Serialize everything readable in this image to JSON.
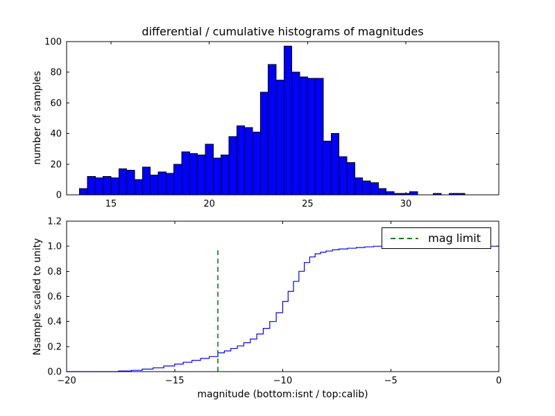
{
  "figure": {
    "background_color": "#ffffff",
    "axes_color": "#000000"
  },
  "chart_data": [
    {
      "type": "bar",
      "role": "differential-histogram",
      "title": "differential / cumulative histograms of magnitudes",
      "ylabel": "number of samples",
      "xlim": [
        12.74,
        34.73
      ],
      "ylim": [
        0,
        100
      ],
      "xticks": [
        15,
        20,
        25,
        30
      ],
      "xtick_labels": [
        "15",
        "20",
        "25",
        "30"
      ],
      "yticks": [
        0,
        20,
        40,
        60,
        80,
        100
      ],
      "ytick_labels": [
        "0",
        "20",
        "40",
        "60",
        "80",
        "100"
      ],
      "bin_start": 13.4,
      "bin_width": 0.4,
      "values": [
        4,
        12,
        11,
        12,
        11,
        17,
        16,
        10,
        18,
        13,
        15,
        14,
        20,
        28,
        27,
        26,
        33,
        24,
        26,
        38,
        45,
        44,
        41,
        67,
        85,
        75,
        97,
        80,
        77,
        76,
        76,
        35,
        40,
        25,
        21,
        11,
        9,
        8,
        4,
        2,
        1,
        1,
        2,
        0,
        0,
        1,
        0,
        1,
        1
      ],
      "bar_fill": "#0000ff",
      "bar_edge": "#000000",
      "grid": false
    },
    {
      "type": "line",
      "role": "cumulative-histogram",
      "step": true,
      "xlabel": "magnitude (bottom:isnt / top:calib)",
      "ylabel": "Nsample scaled to unity",
      "xlim": [
        -20,
        0
      ],
      "ylim": [
        0,
        1.2
      ],
      "xticks": [
        -20,
        -15,
        -10,
        -5,
        0
      ],
      "xtick_labels": [
        "−20",
        "−15",
        "−10",
        "−5",
        "0"
      ],
      "yticks": [
        0,
        0.2,
        0.4,
        0.6,
        0.8,
        1.0,
        1.2
      ],
      "ytick_labels": [
        "0.0",
        "0.2",
        "0.4",
        "0.6",
        "0.8",
        "1.0",
        "1.2"
      ],
      "line_color": "#0000ff",
      "points": [
        [
          -20,
          0
        ],
        [
          -17.6,
          0.005
        ],
        [
          -17.0,
          0.01
        ],
        [
          -16.5,
          0.02
        ],
        [
          -16.0,
          0.03
        ],
        [
          -15.5,
          0.045
        ],
        [
          -15.0,
          0.06
        ],
        [
          -14.6,
          0.075
        ],
        [
          -14.2,
          0.09
        ],
        [
          -13.8,
          0.105
        ],
        [
          -13.4,
          0.12
        ],
        [
          -13.0,
          0.15
        ],
        [
          -12.7,
          0.165
        ],
        [
          -12.4,
          0.185
        ],
        [
          -12.1,
          0.205
        ],
        [
          -11.8,
          0.23
        ],
        [
          -11.5,
          0.26
        ],
        [
          -11.2,
          0.3
        ],
        [
          -10.9,
          0.345
        ],
        [
          -10.6,
          0.4
        ],
        [
          -10.3,
          0.47
        ],
        [
          -10.0,
          0.56
        ],
        [
          -9.75,
          0.64
        ],
        [
          -9.5,
          0.72
        ],
        [
          -9.25,
          0.8
        ],
        [
          -9.0,
          0.87
        ],
        [
          -8.75,
          0.915
        ],
        [
          -8.5,
          0.94
        ],
        [
          -8.25,
          0.952
        ],
        [
          -8.0,
          0.962
        ],
        [
          -7.7,
          0.972
        ],
        [
          -7.4,
          0.978
        ],
        [
          -7.0,
          0.984
        ],
        [
          -6.6,
          0.99
        ],
        [
          -6.2,
          0.995
        ],
        [
          -5.8,
          1.0
        ],
        [
          0,
          1.0
        ]
      ],
      "vline": {
        "x": -13,
        "y0": 0,
        "y1": 0.97,
        "color": "#008000",
        "style": "dashed"
      },
      "legend": {
        "label": "mag limit",
        "position": "upper right",
        "line_color": "#008000",
        "line_style": "dashed"
      },
      "grid": false
    }
  ]
}
